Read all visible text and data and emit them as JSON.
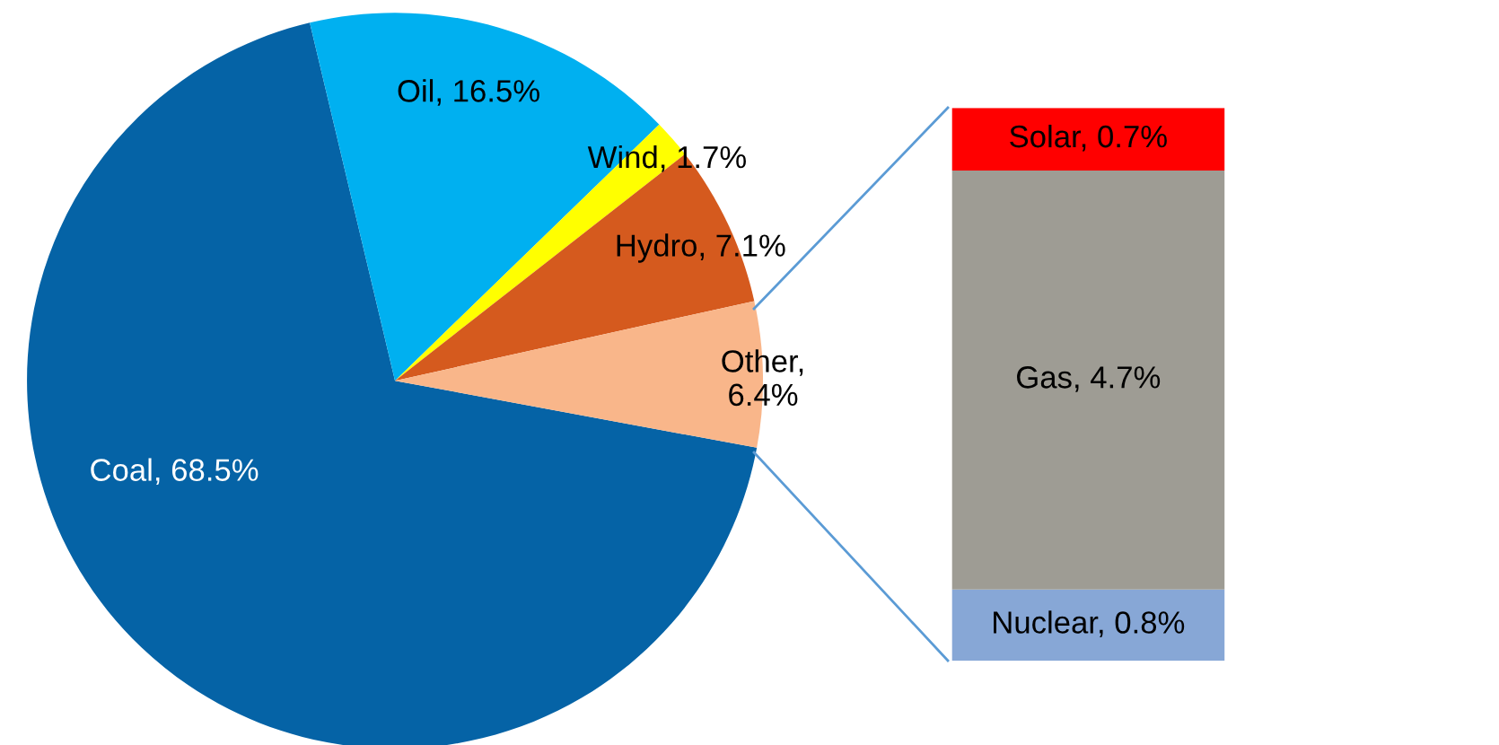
{
  "chart_data": [
    {
      "type": "pie",
      "categories": [
        "Coal, 68.5%",
        "Oil, 16.5%",
        "Wind, 1.7%",
        "Hydro, 7.1%",
        "Other,\n6.4%"
      ],
      "values": [
        68.5,
        16.5,
        1.7,
        7.1,
        6.4
      ],
      "colors": [
        "#0563a6",
        "#00b0f0",
        "#ffff00",
        "#d55a1e",
        "#f9b68a"
      ]
    },
    {
      "type": "bar",
      "stacked": true,
      "categories": [
        null
      ],
      "tick_labels": false,
      "series": [
        {
          "color": "#87a7d6",
          "values": [
            0.8
          ],
          "value_labels": [
            "Nuclear, 0.8%"
          ]
        },
        {
          "color": "#9e9c94",
          "values": [
            4.7
          ],
          "value_labels": [
            "Gas, 4.7%"
          ]
        },
        {
          "color": "#ff0000",
          "values": [
            0.7
          ],
          "value_labels": [
            "Solar, 0.7%"
          ]
        }
      ]
    }
  ]
}
